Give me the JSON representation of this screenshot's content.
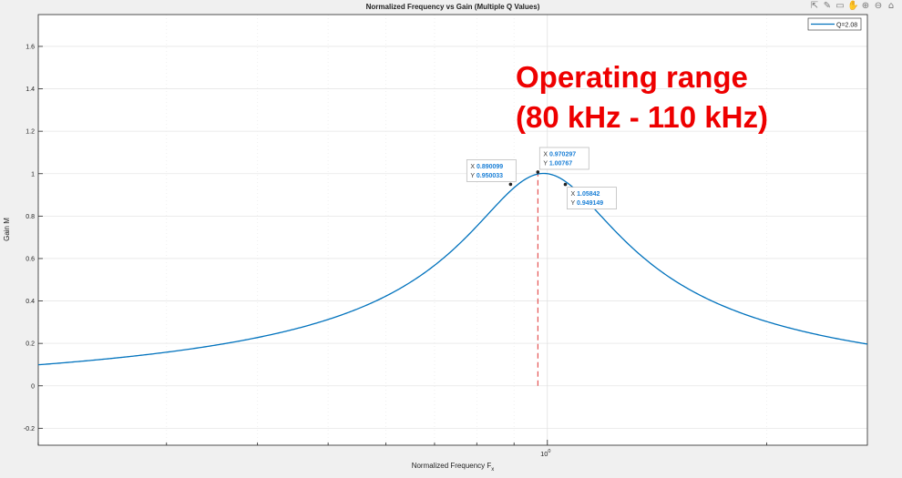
{
  "chart_data": {
    "type": "line",
    "title": "Normalized Frequency vs Gain (Multiple Q Values)",
    "xlabel_main": "Normalized Frequency F",
    "xlabel_sub": "x",
    "ylabel": "Gain M",
    "x_scale": "log",
    "xlim": [
      0.2,
      2.75
    ],
    "ylim": [
      -0.28,
      1.75
    ],
    "y_ticks": [
      -0.2,
      0,
      0.2,
      0.4,
      0.6,
      0.8,
      1,
      1.2,
      1.4,
      1.6
    ],
    "y_tick_labels": [
      "-0.2",
      "0",
      "0.2",
      "0.4",
      "0.6",
      "0.8",
      "1",
      "1.2",
      "1.4",
      "1.6"
    ],
    "x_major_ticks": [
      1
    ],
    "x_tick_label_base": "10",
    "x_tick_label_exp": "0",
    "grid": true,
    "legend_position": "top-right",
    "series": [
      {
        "name": "Q=2.08",
        "color": "#0072bd",
        "Q": 2.08,
        "model": "llc-gain",
        "inductance_ratio": 10
      }
    ],
    "reference_line": {
      "x": 0.970297,
      "y_from": 0,
      "y_to": 1.00767,
      "color": "#e03030",
      "style": "dashed"
    },
    "datatips": [
      {
        "x_label": "X",
        "y_label": "Y",
        "x_text": "0.890099",
        "y_text": "0.950033",
        "x": 0.890099,
        "y": 0.950033
      },
      {
        "x_label": "X",
        "y_label": "Y",
        "x_text": "0.970297",
        "y_text": "1.00767",
        "x": 0.970297,
        "y": 1.00767
      },
      {
        "x_label": "X",
        "y_label": "Y",
        "x_text": "1.05842",
        "y_text": "0.949149",
        "x": 1.05842,
        "y": 0.949149
      }
    ],
    "annotation": {
      "line1": "Operating range",
      "line2": "(80 kHz - 110 kHz)",
      "color": "#ee0000"
    }
  },
  "toolbar": {
    "icons": [
      "export-icon",
      "brush-icon",
      "datatip-icon",
      "pan-icon",
      "zoom-in-icon",
      "zoom-out-icon",
      "home-icon"
    ],
    "glyphs": [
      "⇱",
      "✎",
      "▭",
      "✋",
      "⊕",
      "⊖",
      "⌂"
    ]
  }
}
